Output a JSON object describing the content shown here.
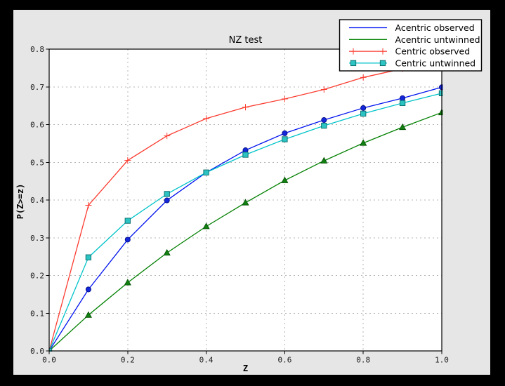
{
  "window": {
    "background": "#000000"
  },
  "figure": {
    "background": "#e6e6e6",
    "plot_background": "#ffffff",
    "grid_color": "#b4b4b4",
    "axis_color": "#000000",
    "tick_label_color": "#1c1c1c",
    "legend_background": "#ffffff",
    "legend_border": "#000000"
  },
  "chart_data": {
    "type": "line",
    "title": "NZ test",
    "xlabel": "Z",
    "ylabel": "P(Z>=z)",
    "xlim": [
      0.0,
      1.0
    ],
    "ylim": [
      0.0,
      0.8
    ],
    "grid": true,
    "legend_position": "upper right",
    "x": [
      0.0,
      0.1,
      0.2,
      0.3,
      0.4,
      0.5,
      0.6,
      0.7,
      0.8,
      0.9,
      1.0
    ],
    "xtick_values": [
      0.0,
      0.2,
      0.4,
      0.6,
      0.8,
      1.0
    ],
    "xtick_labels": [
      "0.0",
      "0.2",
      "0.4",
      "0.6",
      "0.8",
      "1.0"
    ],
    "ytick_values": [
      0.0,
      0.1,
      0.2,
      0.3,
      0.4,
      0.5,
      0.6,
      0.7,
      0.8
    ],
    "ytick_labels": [
      "0.0",
      "0.1",
      "0.2",
      "0.3",
      "0.4",
      "0.5",
      "0.6",
      "0.7",
      "0.8"
    ],
    "series": [
      {
        "name": "Acentric observed",
        "color": "#0013ee",
        "marker": "circle",
        "marker_fill": "#1327d8",
        "marker_edge": "#000a80",
        "legend_show_markers": false,
        "values": [
          0.0,
          0.163,
          0.295,
          0.399,
          0.473,
          0.532,
          0.577,
          0.612,
          0.644,
          0.67,
          0.699
        ]
      },
      {
        "name": "Acentric untwinned",
        "color": "#008000",
        "marker": "triangle",
        "marker_fill": "#118011",
        "marker_edge": "#004d00",
        "legend_show_markers": false,
        "values": [
          0.0,
          0.095,
          0.181,
          0.26,
          0.33,
          0.393,
          0.452,
          0.504,
          0.551,
          0.593,
          0.632
        ]
      },
      {
        "name": "Centric observed",
        "color": "#fb3c30",
        "marker": "plus",
        "marker_fill": "#fb3c30",
        "marker_edge": "#fb3c30",
        "legend_show_markers": true,
        "values": [
          0.0,
          0.386,
          0.505,
          0.57,
          0.616,
          0.646,
          0.668,
          0.693,
          0.725,
          0.748,
          0.763
        ]
      },
      {
        "name": "Centric untwinned",
        "color": "#00c3c9",
        "marker": "square",
        "marker_fill": "#2cc3c3",
        "marker_edge": "#0a6a6a",
        "legend_show_markers": true,
        "values": [
          0.0,
          0.248,
          0.345,
          0.416,
          0.473,
          0.52,
          0.561,
          0.597,
          0.629,
          0.657,
          0.683
        ]
      }
    ]
  }
}
